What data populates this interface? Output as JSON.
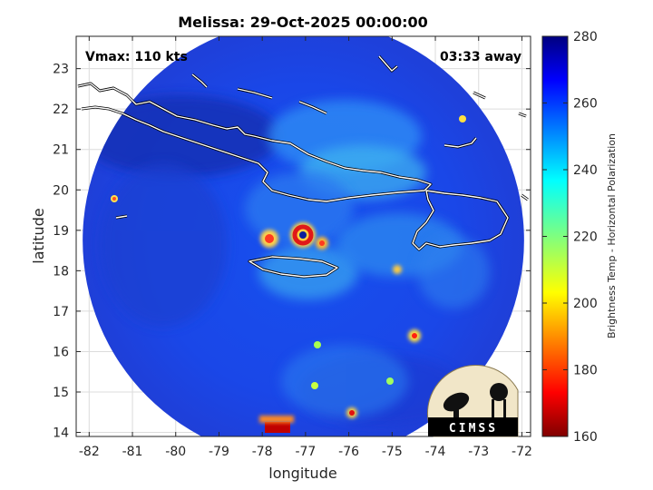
{
  "chart_data": {
    "type": "heatmap",
    "title": "Melissa: 29-Oct-2025 00:00:00",
    "xlabel": "longitude",
    "ylabel": "latitude",
    "xlim": [
      -82.3,
      -71.8
    ],
    "ylim": [
      13.9,
      23.8
    ],
    "x_ticks": [
      -82,
      -81,
      -80,
      -79,
      -78,
      -77,
      -76,
      -75,
      -74,
      -73,
      -72
    ],
    "y_ticks": [
      14,
      15,
      16,
      17,
      18,
      19,
      20,
      21,
      22,
      23
    ],
    "grid": true,
    "annotations": {
      "vmax": "Vmax: 110 kts",
      "time_offset": "03:33 away"
    },
    "storm_center": {
      "lon": -77.0,
      "lat": 18.85
    },
    "swath": {
      "center_lon": -77.05,
      "center_lat": 18.75,
      "radius_deg": 5.1
    },
    "colorbar": {
      "label": "Brightness Temp - Horizontal Polarization",
      "min": 160,
      "max": 280,
      "ticks": [
        160,
        180,
        200,
        220,
        240,
        260,
        280
      ],
      "colormap": "jet"
    },
    "logo": {
      "text": "CIMSS"
    }
  }
}
